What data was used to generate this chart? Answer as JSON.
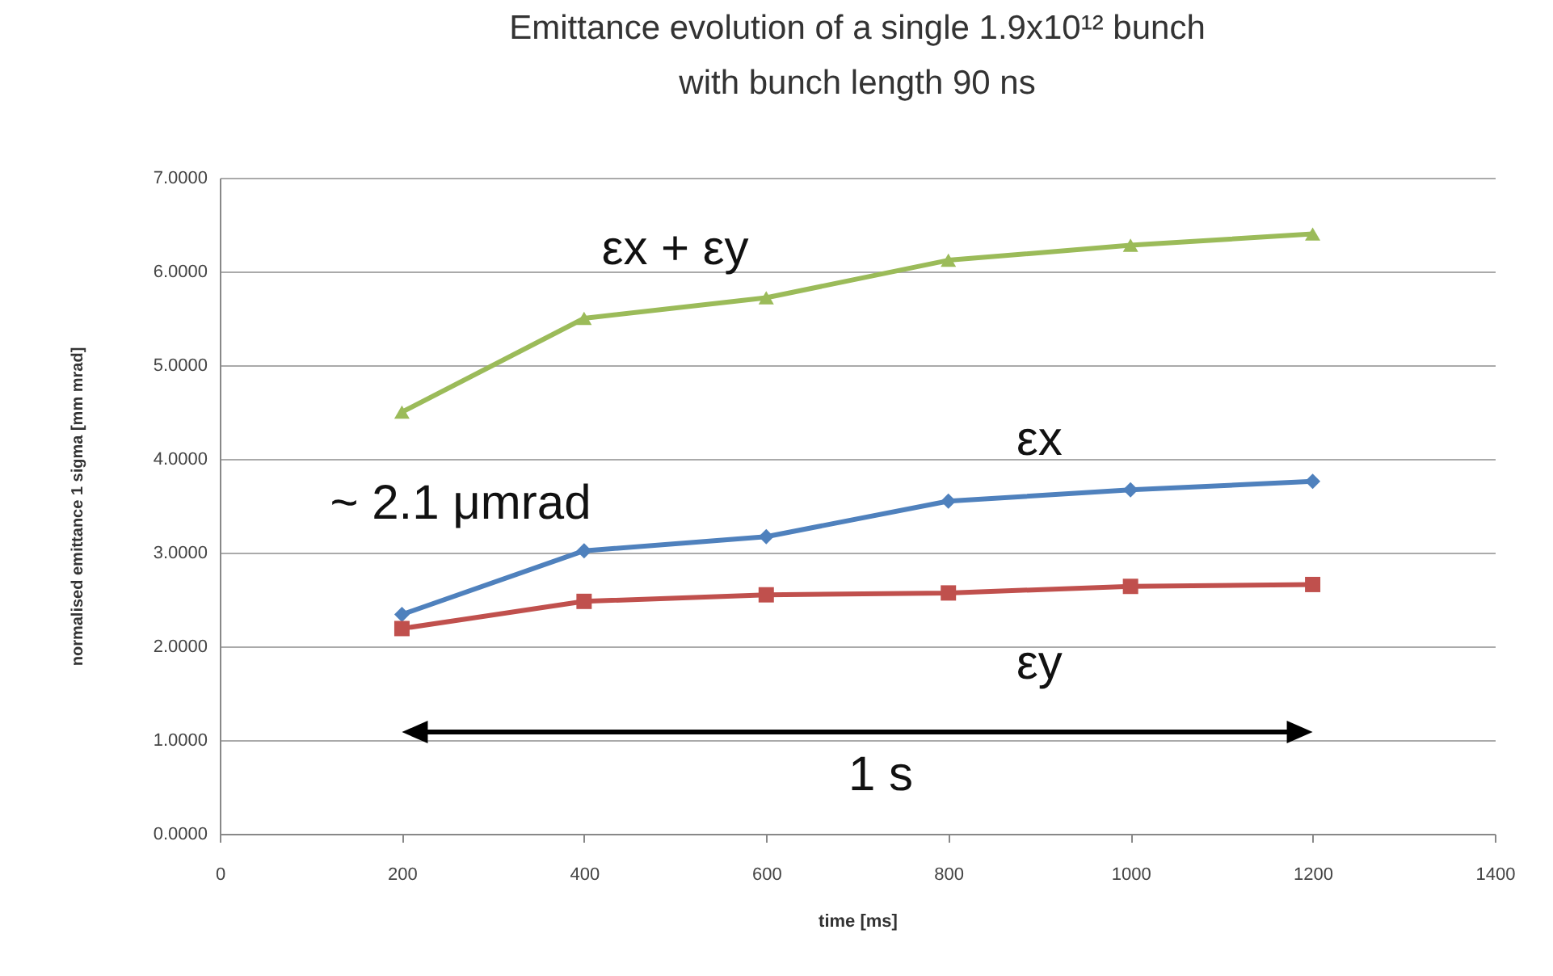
{
  "chart_data": {
    "type": "line",
    "title": [
      "Emittance evolution of a single 1.9x10¹² bunch",
      "with bunch length 90 ns"
    ],
    "xlabel": "time [ms]",
    "ylabel": "normalised emittance 1 sigma [mm mrad]",
    "x": [
      200,
      400,
      600,
      800,
      1000,
      1200
    ],
    "series": [
      {
        "name": "εx + εy",
        "color": "#9bbb59",
        "marker": "triangle",
        "values": [
          4.5,
          5.5,
          5.72,
          6.12,
          6.28,
          6.4
        ]
      },
      {
        "name": "εx",
        "color": "#4f81bd",
        "marker": "diamond",
        "values": [
          2.34,
          3.02,
          3.17,
          3.55,
          3.67,
          3.76
        ]
      },
      {
        "name": "εy",
        "color": "#c0504d",
        "marker": "square",
        "values": [
          2.19,
          2.48,
          2.55,
          2.57,
          2.64,
          2.66
        ]
      }
    ],
    "xlim": [
      0,
      1400
    ],
    "xticks": [
      0,
      200,
      400,
      600,
      800,
      1000,
      1200,
      1400
    ],
    "ylim": [
      0,
      7
    ],
    "yticks": [
      {
        "value": 0,
        "label": "0.0000"
      },
      {
        "value": 1,
        "label": "1.0000"
      },
      {
        "value": 2,
        "label": "2.0000"
      },
      {
        "value": 3,
        "label": "3.0000"
      },
      {
        "value": 4,
        "label": "4.0000"
      },
      {
        "value": 5,
        "label": "5.0000"
      },
      {
        "value": 6,
        "label": "6.0000"
      },
      {
        "value": 7,
        "label": "7.0000"
      }
    ],
    "grid": "y",
    "line_style": "solid",
    "annotations": [
      "~ 2.1 μmrad",
      "1 s"
    ]
  }
}
